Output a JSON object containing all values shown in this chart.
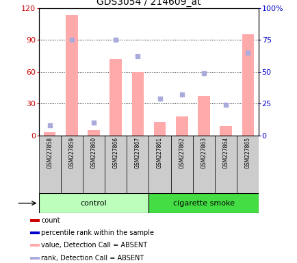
{
  "title": "GDS3054 / 214609_at",
  "samples": [
    "GSM227858",
    "GSM227859",
    "GSM227860",
    "GSM227866",
    "GSM227867",
    "GSM227861",
    "GSM227862",
    "GSM227863",
    "GSM227864",
    "GSM227865"
  ],
  "pink_bars": [
    3,
    113,
    5,
    72,
    60,
    13,
    18,
    37,
    9,
    95
  ],
  "blue_squares_right": [
    8,
    75,
    10,
    75,
    62,
    29,
    32,
    49,
    24,
    65
  ],
  "left_ylim": [
    0,
    120
  ],
  "right_ylim": [
    0,
    100
  ],
  "left_yticks": [
    0,
    30,
    60,
    90,
    120
  ],
  "right_yticks": [
    0,
    25,
    50,
    75,
    100
  ],
  "right_yticklabels": [
    "0",
    "25",
    "50",
    "75",
    "100%"
  ],
  "left_color": "#cc0000",
  "right_color": "#0000cc",
  "bar_color": "#ffaaaa",
  "square_color": "#aaaadd",
  "control_light": "#bbffbb",
  "smoke_dark": "#44dd44",
  "sample_bg": "#cccccc",
  "n_control": 5,
  "n_smoke": 5,
  "legend_items": [
    "count",
    "percentile rank within the sample",
    "value, Detection Call = ABSENT",
    "rank, Detection Call = ABSENT"
  ],
  "legend_colors": [
    "#cc0000",
    "#0000cc",
    "#ffaaaa",
    "#aaaadd"
  ],
  "dotted_lines": [
    30,
    60,
    90
  ]
}
